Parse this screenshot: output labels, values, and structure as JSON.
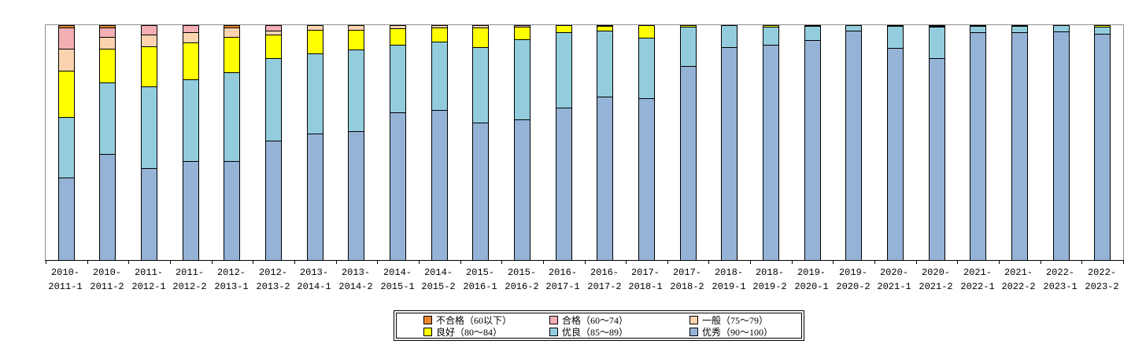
{
  "chart_data": {
    "type": "bar",
    "stacked": true,
    "stacking": "percent",
    "title": "",
    "xlabel": "",
    "ylabel": "",
    "ylim": [
      0,
      100
    ],
    "grid": false,
    "y_axis_labels_visible": false,
    "legend_position": "bottom",
    "categories": [
      "2010-2011-1",
      "2010-2011-2",
      "2011-2012-1",
      "2011-2012-2",
      "2012-2013-1",
      "2012-2013-2",
      "2013-2014-1",
      "2013-2014-2",
      "2014-2015-1",
      "2014-2015-2",
      "2015-2016-1",
      "2015-2016-2",
      "2016-2017-1",
      "2016-2017-2",
      "2017-2018-1",
      "2017-2018-2",
      "2018-2019-1",
      "2018-2019-2",
      "2019-2020-1",
      "2019-2020-2",
      "2020-2021-1",
      "2020-2021-2",
      "2021-2022-1",
      "2021-2022-2",
      "2022-2023-1",
      "2022-2023-2"
    ],
    "categories_display": [
      [
        "2010-",
        "2011-1"
      ],
      [
        "2010-",
        "2011-2"
      ],
      [
        "2011-",
        "2012-1"
      ],
      [
        "2011-",
        "2012-2"
      ],
      [
        "2012-",
        "2013-1"
      ],
      [
        "2012-",
        "2013-2"
      ],
      [
        "2013-",
        "2014-1"
      ],
      [
        "2013-",
        "2014-2"
      ],
      [
        "2014-",
        "2015-1"
      ],
      [
        "2014-",
        "2015-2"
      ],
      [
        "2015-",
        "2016-1"
      ],
      [
        "2015-",
        "2016-2"
      ],
      [
        "2016-",
        "2017-1"
      ],
      [
        "2016-",
        "2017-2"
      ],
      [
        "2017-",
        "2018-1"
      ],
      [
        "2017-",
        "2018-2"
      ],
      [
        "2018-",
        "2019-1"
      ],
      [
        "2018-",
        "2019-2"
      ],
      [
        "2019-",
        "2020-1"
      ],
      [
        "2019-",
        "2020-2"
      ],
      [
        "2020-",
        "2021-1"
      ],
      [
        "2020-",
        "2021-2"
      ],
      [
        "2021-",
        "2022-1"
      ],
      [
        "2021-",
        "2022-2"
      ],
      [
        "2022-",
        "2023-1"
      ],
      [
        "2022-",
        "2023-2"
      ]
    ],
    "series": [
      {
        "name": "优秀（90～100）",
        "color": "#95B3D7",
        "values": [
          35,
          45,
          39,
          42,
          42,
          51,
          54,
          55,
          63,
          64,
          58.5,
          60,
          65,
          69.5,
          69,
          82.5,
          90.7,
          91.8,
          93.7,
          97.6,
          90.2,
          86,
          96.9,
          96.9,
          97.3,
          96.2
        ]
      },
      {
        "name": "优良（85～89）",
        "color": "#93CDDD",
        "values": [
          26,
          30.5,
          35,
          35,
          38,
          35,
          34,
          34.5,
          28.5,
          29,
          32,
          34,
          32,
          28,
          25.8,
          16.7,
          9.3,
          7.6,
          5.9,
          2.4,
          9.3,
          13.4,
          2.8,
          2.8,
          2.7,
          3
        ]
      },
      {
        "name": "良好（80～84）",
        "color": "#FFFF00",
        "values": [
          19.5,
          14.5,
          17,
          15.5,
          15,
          10,
          10,
          8.5,
          7,
          6,
          8.5,
          5.3,
          3,
          2,
          5.2,
          0.8,
          0,
          0.6,
          0.4,
          0,
          0.5,
          0.3,
          0.3,
          0.3,
          0,
          0.8
        ]
      },
      {
        "name": "一般（75～79）",
        "color": "#FBD4AF",
        "values": [
          9.5,
          5,
          5,
          4.5,
          4,
          1.5,
          2,
          2,
          1.5,
          1,
          1,
          0,
          0,
          0.5,
          0,
          0,
          0,
          0,
          0,
          0,
          0,
          0,
          0,
          0,
          0,
          0
        ]
      },
      {
        "name": "合格（60～74）",
        "color": "#F4AFB4",
        "values": [
          9,
          4,
          4,
          3,
          0,
          2.5,
          0,
          0,
          0,
          0,
          0,
          0.7,
          0,
          0,
          0,
          0,
          0,
          0,
          0,
          0,
          0,
          0.3,
          0,
          0,
          0,
          0
        ]
      },
      {
        "name": "不合格（60以下）",
        "color": "#E8862D",
        "values": [
          1,
          1,
          0,
          0,
          1,
          0,
          0,
          0,
          0,
          0,
          0,
          0,
          0,
          0,
          0,
          0,
          0,
          0,
          0,
          0,
          0,
          0,
          0,
          0,
          0,
          0
        ]
      }
    ],
    "legend_items": [
      {
        "label": "不合格（60以下）",
        "color": "#E8862D"
      },
      {
        "label": "合格（60～74）",
        "color": "#F4AFB4"
      },
      {
        "label": "一般（75～79）",
        "color": "#FBD4AF"
      },
      {
        "label": "良好（80～84）",
        "color": "#FFFF00"
      },
      {
        "label": "优良（85～89）",
        "color": "#93CDDD"
      },
      {
        "label": "优秀（90～100）",
        "color": "#95B3D7"
      }
    ]
  }
}
